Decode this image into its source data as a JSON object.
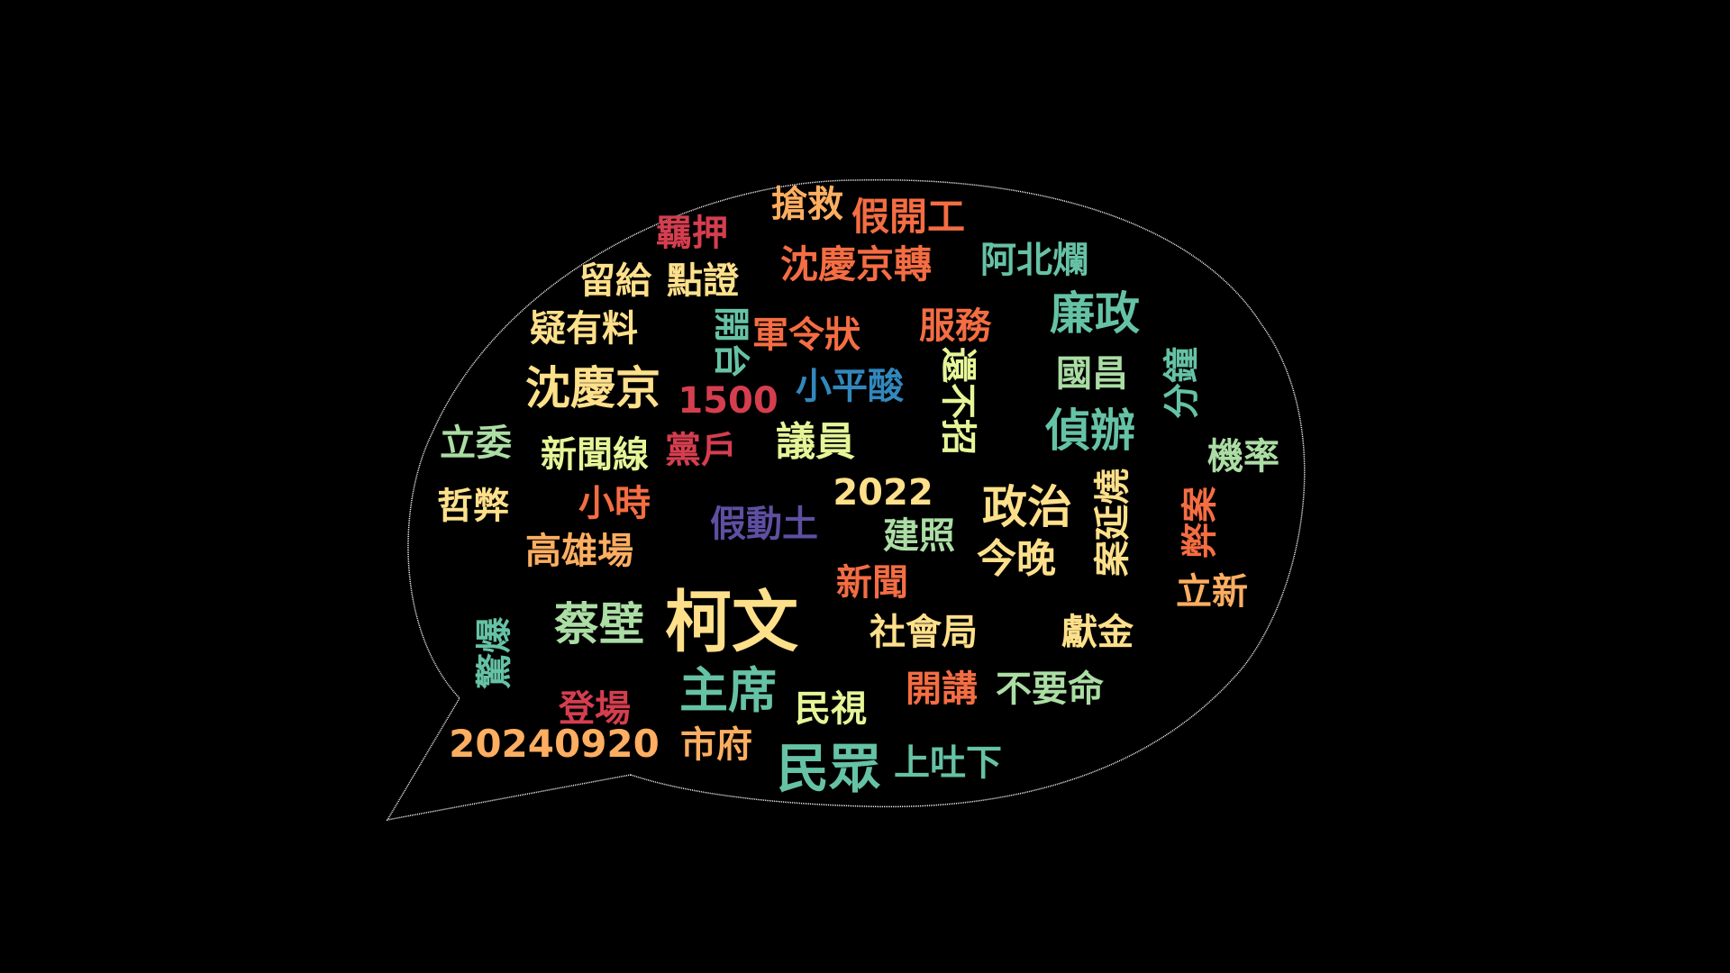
{
  "cloud": {
    "words": [
      {
        "id": "w01",
        "text": "柯文",
        "color": "#fee08b"
      },
      {
        "id": "w02",
        "text": "民眾",
        "color": "#66c2a5"
      },
      {
        "id": "w03",
        "text": "主席",
        "color": "#66c2a5"
      },
      {
        "id": "w04",
        "text": "沈慶京",
        "color": "#fee08b"
      },
      {
        "id": "w05",
        "text": "蔡壁",
        "color": "#abdda4"
      },
      {
        "id": "w06",
        "text": "政治",
        "color": "#fee08b"
      },
      {
        "id": "w07",
        "text": "偵辦",
        "color": "#66c2a5"
      },
      {
        "id": "w08",
        "text": "廉政",
        "color": "#66c2a5"
      },
      {
        "id": "w09",
        "text": "沈慶京轉",
        "color": "#f46d43"
      },
      {
        "id": "w10",
        "text": "假開工",
        "color": "#f46d43"
      },
      {
        "id": "w11",
        "text": "搶救",
        "color": "#fdae61"
      },
      {
        "id": "w12",
        "text": "羈押",
        "color": "#d53e4f"
      },
      {
        "id": "w13",
        "text": "留給",
        "color": "#fee08b"
      },
      {
        "id": "w14",
        "text": "點證",
        "color": "#fee08b"
      },
      {
        "id": "w15",
        "text": "阿北爛",
        "color": "#66c2a5"
      },
      {
        "id": "w16",
        "text": "疑有料",
        "color": "#fee08b"
      },
      {
        "id": "w17",
        "text": "開台",
        "color": "#66c2a5"
      },
      {
        "id": "w18",
        "text": "軍令狀",
        "color": "#f46d43"
      },
      {
        "id": "w19",
        "text": "服務",
        "color": "#f46d43"
      },
      {
        "id": "w20",
        "text": "國昌",
        "color": "#abdda4"
      },
      {
        "id": "w21",
        "text": "分鐘",
        "color": "#66c2a5"
      },
      {
        "id": "w22",
        "text": "1500",
        "color": "#d53e4f"
      },
      {
        "id": "w23",
        "text": "小平酸",
        "color": "#3288bd"
      },
      {
        "id": "w24",
        "text": "還不招",
        "color": "#e6f598"
      },
      {
        "id": "w25",
        "text": "立委",
        "color": "#abdda4"
      },
      {
        "id": "w26",
        "text": "新聞線",
        "color": "#e6f598"
      },
      {
        "id": "w27",
        "text": "黨戶",
        "color": "#d53e4f"
      },
      {
        "id": "w28",
        "text": "議員",
        "color": "#e6f598"
      },
      {
        "id": "w29",
        "text": "機率",
        "color": "#abdda4"
      },
      {
        "id": "w30",
        "text": "哲弊",
        "color": "#fee08b"
      },
      {
        "id": "w31",
        "text": "小時",
        "color": "#f46d43"
      },
      {
        "id": "w32",
        "text": "2022",
        "color": "#fee08b"
      },
      {
        "id": "w33",
        "text": "案延燒",
        "color": "#fee08b"
      },
      {
        "id": "w34",
        "text": "弊案",
        "color": "#f46d43"
      },
      {
        "id": "w35",
        "text": "假動土",
        "color": "#5e4fa2"
      },
      {
        "id": "w36",
        "text": "建照",
        "color": "#abdda4"
      },
      {
        "id": "w37",
        "text": "高雄場",
        "color": "#fdae61"
      },
      {
        "id": "w38",
        "text": "今晚",
        "color": "#fee08b"
      },
      {
        "id": "w39",
        "text": "新聞",
        "color": "#f46d43"
      },
      {
        "id": "w40",
        "text": "立新",
        "color": "#fdae61"
      },
      {
        "id": "w41",
        "text": "社會局",
        "color": "#fee08b"
      },
      {
        "id": "w42",
        "text": "獻金",
        "color": "#fee08b"
      },
      {
        "id": "w43",
        "text": "驚爆",
        "color": "#66c2a5"
      },
      {
        "id": "w44",
        "text": "開講",
        "color": "#f46d43"
      },
      {
        "id": "w45",
        "text": "不要命",
        "color": "#abdda4"
      },
      {
        "id": "w46",
        "text": "民視",
        "color": "#e6f598"
      },
      {
        "id": "w47",
        "text": "登場",
        "color": "#d53e4f"
      },
      {
        "id": "w48",
        "text": "20240920",
        "color": "#fdae61"
      },
      {
        "id": "w49",
        "text": "市府",
        "color": "#fdae61"
      },
      {
        "id": "w50",
        "text": "上吐下",
        "color": "#66c2a5"
      }
    ]
  }
}
